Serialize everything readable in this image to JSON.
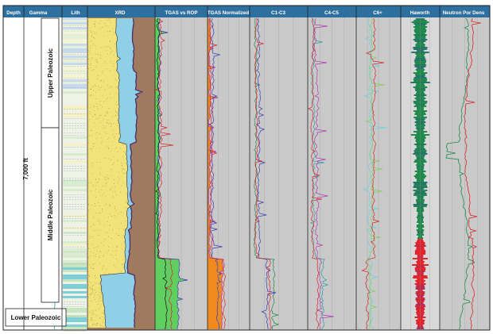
{
  "figure": {
    "tracks": [
      {
        "key": "depth",
        "label": "Depth"
      },
      {
        "key": "gamma",
        "label": "Gamma"
      },
      {
        "key": "lith",
        "label": "Lith"
      },
      {
        "key": "xrd",
        "label": "XRD"
      },
      {
        "key": "tgas_rop",
        "label": "TGAS vs ROP"
      },
      {
        "key": "tgas_norm",
        "label": "TGAS Normalized"
      },
      {
        "key": "c1c3",
        "label": "C1-C3"
      },
      {
        "key": "c4c5",
        "label": "C4-C5"
      },
      {
        "key": "c6",
        "label": "C6+"
      },
      {
        "key": "haworth",
        "label": "Haworth"
      },
      {
        "key": "npd",
        "label": "Neutron Por Dens"
      }
    ],
    "depth_label": "7,000 ft",
    "zones": {
      "upper": "Upper Paleozoic",
      "middle": "Middle Paleozoic",
      "lower": "Lower Paleozoic"
    },
    "colors": {
      "header_bg": "#2d6f9e",
      "track_bg": "#c9c9c9",
      "xrd_quartz": "#f2e27a",
      "xrd_carbonate": "#8fd0e6",
      "xrd_clay": "#a07a5e",
      "haworth_green": "#1f8a4c",
      "haworth_red": "#e3242b"
    }
  }
}
